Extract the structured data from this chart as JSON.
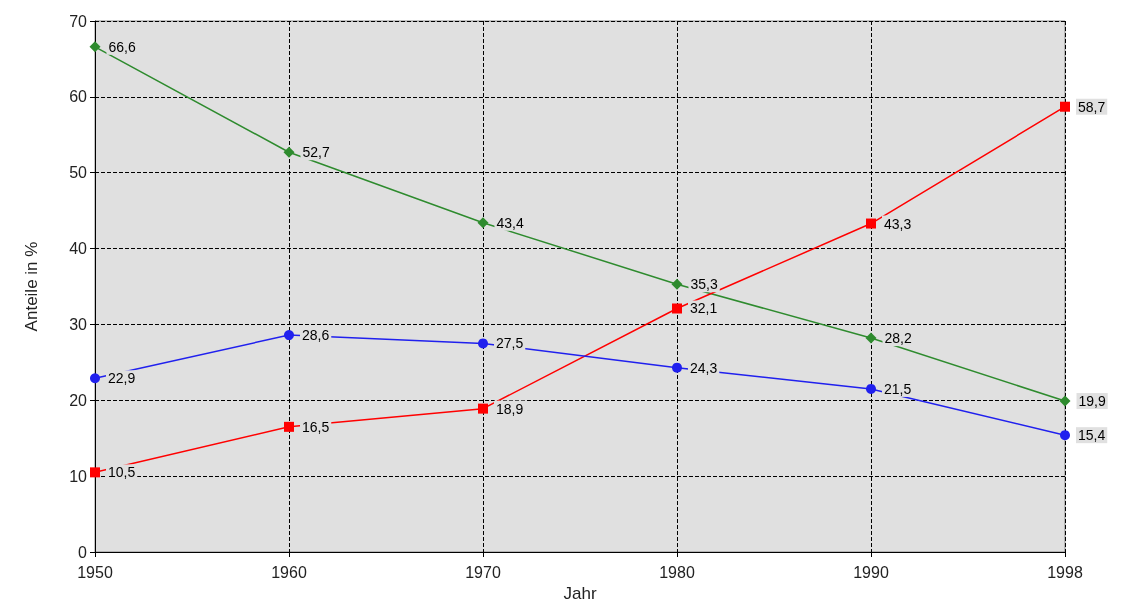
{
  "chart_data": {
    "type": "line",
    "xlabel": "Jahr",
    "ylabel": "Anteile in %",
    "categories": [
      "1950",
      "1960",
      "1970",
      "1980",
      "1990",
      "1998"
    ],
    "ylim": [
      0,
      70
    ],
    "yticks": [
      0,
      10,
      20,
      30,
      40,
      50,
      60,
      70
    ],
    "grid": true,
    "line_style": "solid",
    "series": [
      {
        "color": "#2e8b2e",
        "marker": "diamond",
        "values": [
          66.6,
          52.7,
          43.4,
          35.3,
          28.2,
          19.9
        ],
        "value_labels": [
          "66,6",
          "52,7",
          "43,4",
          "35,3",
          "28,2",
          "19,9"
        ]
      },
      {
        "color": "#ff0000",
        "marker": "square",
        "values": [
          10.5,
          16.5,
          18.9,
          32.1,
          43.3,
          58.7
        ],
        "value_labels": [
          "10,5",
          "16,5",
          "18,9",
          "32,1",
          "43,3",
          "58,7"
        ]
      },
      {
        "color": "#2020ee",
        "marker": "circle",
        "values": [
          22.9,
          28.6,
          27.5,
          24.3,
          21.5,
          15.4
        ],
        "value_labels": [
          "22,9",
          "28,6",
          "27,5",
          "24,3",
          "21,5",
          "15,4"
        ]
      }
    ]
  }
}
